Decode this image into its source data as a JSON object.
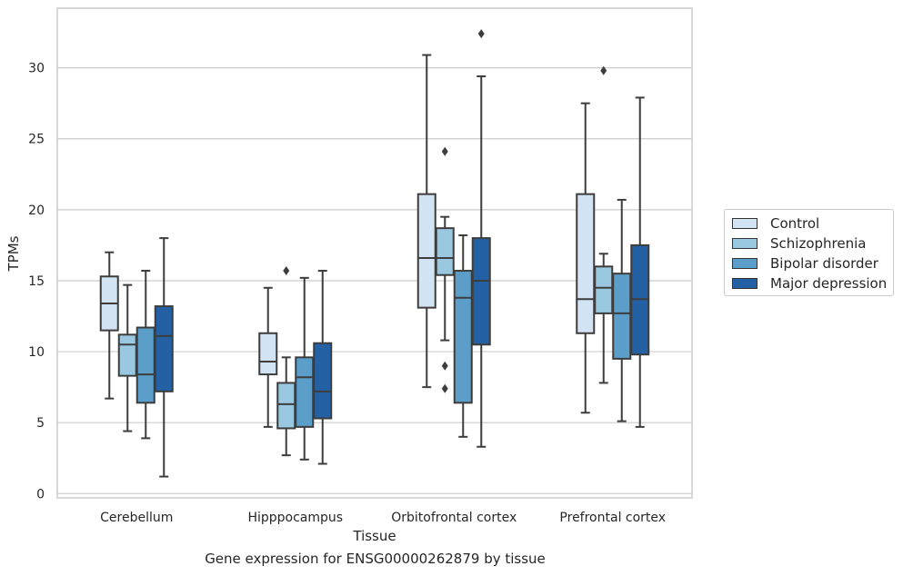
{
  "caption": "Gene expression for ENSG00000262879 by tissue",
  "chart_data": {
    "type": "box",
    "xlabel": "Tissue",
    "ylabel": "TPMs",
    "ylim": [
      -0.3,
      34.2
    ],
    "yticks": [
      0,
      5,
      10,
      15,
      20,
      25,
      30
    ],
    "grid": "horizontal",
    "legend_position": "right",
    "categories": [
      "Cerebellum",
      "Hipppocampus",
      "Orbitofrontal cortex",
      "Prefrontal cortex"
    ],
    "series": [
      {
        "name": "Control",
        "color": "#d2e3f3",
        "boxes": [
          {
            "whisker_low": 6.7,
            "q1": 11.5,
            "median": 13.4,
            "q3": 15.3,
            "whisker_high": 17.0,
            "outliers": []
          },
          {
            "whisker_low": 4.7,
            "q1": 8.4,
            "median": 9.3,
            "q3": 11.3,
            "whisker_high": 14.5,
            "outliers": []
          },
          {
            "whisker_low": 7.5,
            "q1": 13.1,
            "median": 16.6,
            "q3": 21.1,
            "whisker_high": 30.9,
            "outliers": []
          },
          {
            "whisker_low": 5.7,
            "q1": 11.3,
            "median": 13.7,
            "q3": 21.1,
            "whisker_high": 27.5,
            "outliers": []
          }
        ]
      },
      {
        "name": "Schizophrenia",
        "color": "#9ac8e0",
        "boxes": [
          {
            "whisker_low": 4.4,
            "q1": 8.3,
            "median": 10.5,
            "q3": 11.2,
            "whisker_high": 14.7,
            "outliers": []
          },
          {
            "whisker_low": 2.7,
            "q1": 4.6,
            "median": 6.3,
            "q3": 7.8,
            "whisker_high": 9.6,
            "outliers": [
              15.7
            ]
          },
          {
            "whisker_low": 10.8,
            "q1": 15.4,
            "median": 16.6,
            "q3": 18.7,
            "whisker_high": 19.5,
            "outliers": [
              24.1,
              9.0,
              7.4
            ]
          },
          {
            "whisker_low": 7.8,
            "q1": 12.7,
            "median": 14.5,
            "q3": 16.0,
            "whisker_high": 16.9,
            "outliers": [
              29.8
            ]
          }
        ]
      },
      {
        "name": "Bipolar disorder",
        "color": "#5a9ec9",
        "boxes": [
          {
            "whisker_low": 3.9,
            "q1": 6.4,
            "median": 8.4,
            "q3": 11.7,
            "whisker_high": 15.7,
            "outliers": []
          },
          {
            "whisker_low": 2.4,
            "q1": 4.7,
            "median": 8.2,
            "q3": 9.6,
            "whisker_high": 15.2,
            "outliers": []
          },
          {
            "whisker_low": 4.0,
            "q1": 6.4,
            "median": 13.8,
            "q3": 15.7,
            "whisker_high": 18.2,
            "outliers": []
          },
          {
            "whisker_low": 5.1,
            "q1": 9.5,
            "median": 12.7,
            "q3": 15.5,
            "whisker_high": 20.7,
            "outliers": []
          }
        ]
      },
      {
        "name": "Major depression",
        "color": "#2361a4",
        "boxes": [
          {
            "whisker_low": 1.2,
            "q1": 7.2,
            "median": 11.1,
            "q3": 13.2,
            "whisker_high": 18.0,
            "outliers": []
          },
          {
            "whisker_low": 2.1,
            "q1": 5.3,
            "median": 7.2,
            "q3": 10.6,
            "whisker_high": 15.7,
            "outliers": []
          },
          {
            "whisker_low": 3.3,
            "q1": 10.5,
            "median": 15.0,
            "q3": 18.0,
            "whisker_high": 29.4,
            "outliers": [
              32.4
            ]
          },
          {
            "whisker_low": 4.7,
            "q1": 9.8,
            "median": 13.7,
            "q3": 17.5,
            "whisker_high": 27.9,
            "outliers": []
          }
        ]
      }
    ]
  }
}
